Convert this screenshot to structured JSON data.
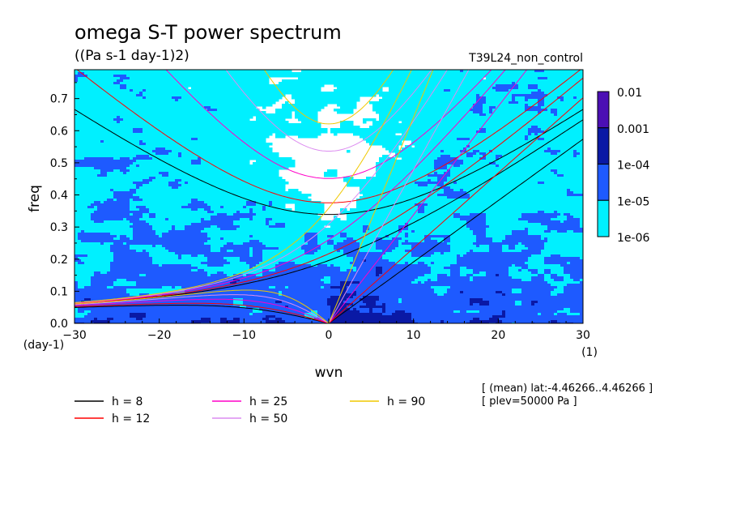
{
  "chart_data": {
    "type": "heatmap",
    "title": "omega S-T power spectrum",
    "units": "((Pa s-1 day-1)2)",
    "experiment": "T39L24_non_control",
    "xlabel": "wvn",
    "xunit": "(1)",
    "ylabel": "freq",
    "yunit": "(day-1)",
    "xlim": [
      -30,
      30
    ],
    "ylim": [
      0,
      0.79
    ],
    "xticks": [
      "−30",
      "−20",
      "−10",
      "0",
      "10",
      "20",
      "30"
    ],
    "xtick_values": [
      -30,
      -20,
      -10,
      0,
      10,
      20,
      30
    ],
    "yticks": [
      "0.0",
      "0.1",
      "0.2",
      "0.3",
      "0.4",
      "0.5",
      "0.6",
      "0.7"
    ],
    "ytick_values": [
      0,
      0.1,
      0.2,
      0.3,
      0.4,
      0.5,
      0.6,
      0.7
    ],
    "colorbar": {
      "labels": [
        "0.01",
        "0.001",
        "1e-04",
        "1e-05",
        "1e-06"
      ],
      "levels": [
        0.01,
        0.001,
        0.0001,
        1e-05,
        1e-06
      ],
      "colors": [
        "#4b0fb4",
        "#0a19a5",
        "#1e5aff",
        "#00f0ff"
      ]
    },
    "dispersion_curves": {
      "legend_placement": "bottom",
      "items": [
        {
          "label": "h =  8",
          "h": 8,
          "color": "#000000"
        },
        {
          "label": "h = 12",
          "h": 12,
          "color": "#ff0000"
        },
        {
          "label": "h = 25",
          "h": 25,
          "color": "#ff00c8"
        },
        {
          "label": "h = 50",
          "h": 50,
          "color": "#dc8cf0"
        },
        {
          "label": "h = 90",
          "h": 90,
          "color": "#f0c800"
        }
      ]
    },
    "annotations": [
      "[ (mean) lat:-4.46266..4.46266 ]",
      "[ plev=50000 Pa ]"
    ]
  }
}
